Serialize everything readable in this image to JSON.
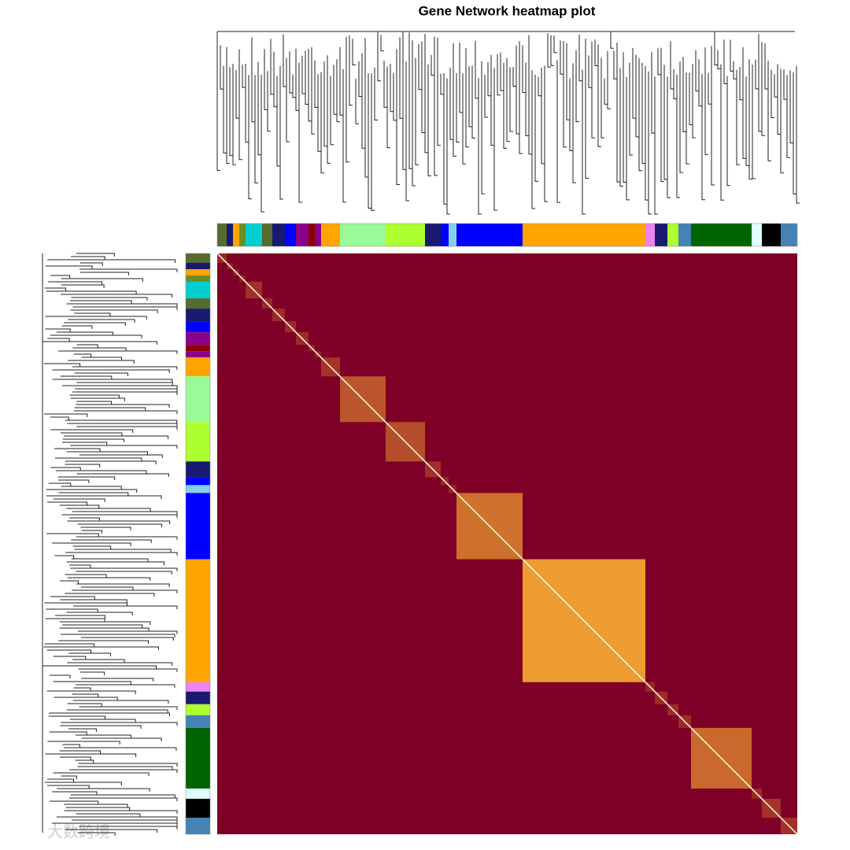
{
  "chart_data": {
    "type": "heatmap",
    "title": "Gene Network heatmap plot",
    "watermark": "大数跨境",
    "background_color": "#7f0026",
    "block_color": "#ffb733",
    "diagonal_color": "#fffbe0",
    "modules": [
      {
        "color": "#556b2f",
        "size": 12
      },
      {
        "color": "#191970",
        "size": 8
      },
      {
        "color": "#ffa500",
        "size": 8
      },
      {
        "color": "#6b8e23",
        "size": 8
      },
      {
        "color": "#00ced1",
        "size": 21
      },
      {
        "color": "#556b2f",
        "size": 13
      },
      {
        "color": "#191970",
        "size": 16
      },
      {
        "color": "#0000ff",
        "size": 14
      },
      {
        "color": "#8b008b",
        "size": 16
      },
      {
        "color": "#8b0000",
        "size": 8
      },
      {
        "color": "#8b008b",
        "size": 8
      },
      {
        "color": "#ffa500",
        "size": 24
      },
      {
        "color": "#98fb98",
        "size": 58
      },
      {
        "color": "#adff2f",
        "size": 50
      },
      {
        "color": "#191970",
        "size": 20
      },
      {
        "color": "#0000ff",
        "size": 10
      },
      {
        "color": "#87ceeb",
        "size": 10
      },
      {
        "color": "#0000ff",
        "size": 84
      },
      {
        "color": "#ffa500",
        "size": 156
      },
      {
        "color": "#ee82ee",
        "size": 12
      },
      {
        "color": "#191970",
        "size": 16
      },
      {
        "color": "#adff2f",
        "size": 14
      },
      {
        "color": "#4682b4",
        "size": 16
      },
      {
        "color": "#006400",
        "size": 77
      },
      {
        "color": "#e0ffff",
        "size": 13
      },
      {
        "color": "#000000",
        "size": 24
      },
      {
        "color": "#4682b4",
        "size": 21
      }
    ]
  }
}
